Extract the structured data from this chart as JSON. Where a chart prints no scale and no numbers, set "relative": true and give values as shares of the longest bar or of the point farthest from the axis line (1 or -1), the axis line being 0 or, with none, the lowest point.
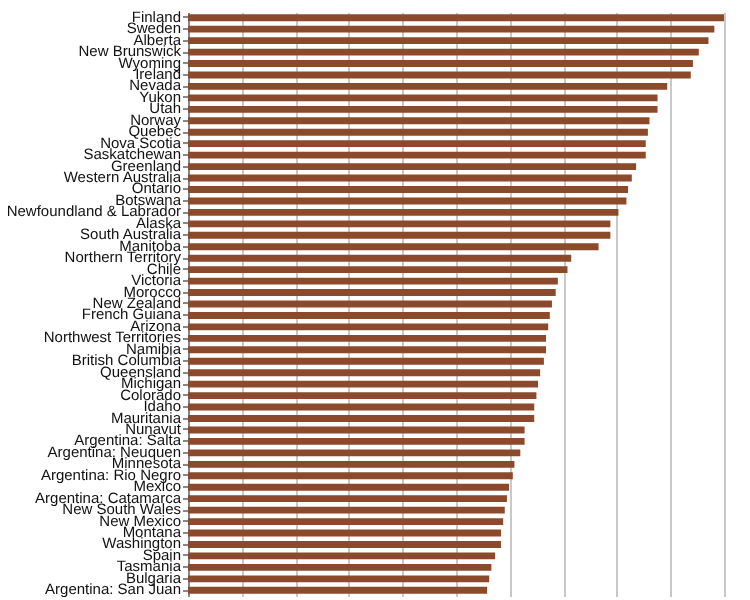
{
  "chart_data": {
    "type": "bar",
    "orientation": "horizontal",
    "relative": true,
    "grid": "x",
    "color": "#8b4a2c",
    "categories": [
      "Finland",
      "Sweden",
      "Alberta",
      "New Brunswick",
      "Wyoming",
      "Ireland",
      "Nevada",
      "Yukon",
      "Utah",
      "Norway",
      "Quebec",
      "Nova Scotia",
      "Saskatchewan",
      "Greenland",
      "Western Australia",
      "Ontario",
      "Botswana",
      "Newfoundland & Labrador",
      "Alaska",
      "South Australia",
      "Manitoba",
      "Northern Territory",
      "Chile",
      "Victoria",
      "Morocco",
      "New Zealand",
      "French Guiana",
      "Arizona",
      "Northwest Territories",
      "Namibia",
      "British Columbia",
      "Queensland",
      "Michigan",
      "Colorado",
      "Idaho",
      "Mauritania",
      "Nunavut",
      "Argentina: Salta",
      "Argentina: Neuquen",
      "Minnesota",
      "Argentina: Rio Negro",
      "Mexico",
      "Argentina: Catamarca",
      "New South Wales",
      "New Mexico",
      "Montana",
      "Washington",
      "Spain",
      "Tasmania",
      "Bulgaria",
      "Argentina: San Juan"
    ],
    "values": [
      1,
      0.982,
      0.971,
      0.953,
      0.942,
      0.938,
      0.894,
      0.876,
      0.876,
      0.861,
      0.858,
      0.854,
      0.854,
      0.836,
      0.828,
      0.821,
      0.818,
      0.803,
      0.788,
      0.788,
      0.766,
      0.715,
      0.708,
      0.69,
      0.686,
      0.679,
      0.675,
      0.672,
      0.668,
      0.668,
      0.664,
      0.657,
      0.653,
      0.65,
      0.646,
      0.646,
      0.628,
      0.628,
      0.62,
      0.609,
      0.606,
      0.599,
      0.595,
      0.591,
      0.588,
      0.584,
      0.584,
      0.573,
      0.566,
      0.562,
      0.558
    ]
  }
}
